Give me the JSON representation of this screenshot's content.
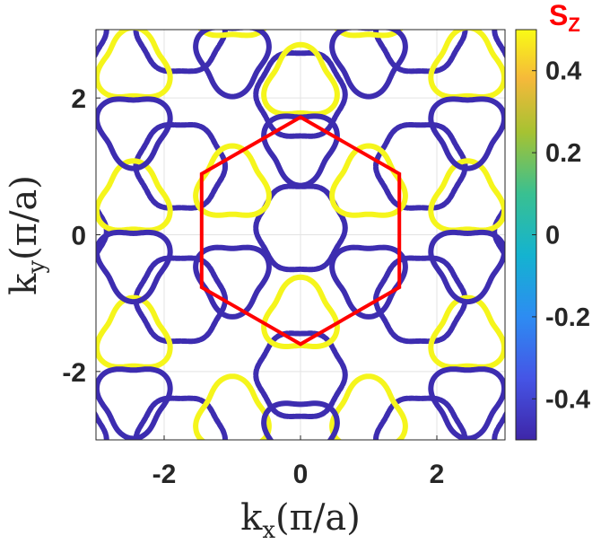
{
  "chart_data": {
    "type": "scatter",
    "title": "",
    "xlabel_main": "k",
    "xlabel_sub": "x",
    "xlabel_rest": "(π/a)",
    "ylabel_main": "k",
    "ylabel_sub": "y",
    "ylabel_rest": "(π/a)",
    "xlim": [
      -3,
      3
    ],
    "ylim": [
      -3,
      3
    ],
    "xticks": [
      -2,
      0,
      2
    ],
    "yticks": [
      -2,
      0,
      2
    ],
    "xtick_labels": [
      "-2",
      "0",
      "2"
    ],
    "ytick_labels": [
      "-2",
      "0",
      "2"
    ],
    "grid": true,
    "colorbar": {
      "title_main": "S",
      "title_sub": "Z",
      "range": [
        -0.5,
        0.5
      ],
      "ticks": [
        -0.4,
        -0.2,
        0,
        0.2,
        0.4
      ],
      "tick_labels": [
        "-0.4",
        "-0.2",
        "0",
        "0.2",
        "0.4"
      ],
      "colormap": "parula"
    },
    "hexagon": {
      "color": "#ff0000",
      "vertices": [
        [
          0,
          1.72
        ],
        [
          1.45,
          0.89
        ],
        [
          1.45,
          -0.77
        ],
        [
          0,
          -1.6
        ],
        [
          -1.45,
          -0.77
        ],
        [
          -1.45,
          0.89
        ]
      ]
    },
    "pockets": [
      {
        "name": "ring-center",
        "center": [
          0,
          0.1
        ],
        "radius": 0.63,
        "kind": "round",
        "color_value": -0.45
      },
      {
        "name": "ring-top",
        "center": [
          0,
          2.05
        ],
        "radius": 0.63,
        "kind": "round",
        "color_value": -0.45
      },
      {
        "name": "ring-bottom",
        "center": [
          0,
          -2.05
        ],
        "radius": 0.63,
        "kind": "round",
        "color_value": -0.45
      },
      {
        "name": "ring-left-up",
        "center": [
          -1.76,
          1.0
        ],
        "radius": 0.63,
        "kind": "round",
        "color_value": -0.45
      },
      {
        "name": "ring-left-down",
        "center": [
          -1.76,
          -0.95
        ],
        "radius": 0.63,
        "kind": "round",
        "color_value": -0.45
      },
      {
        "name": "ring-right-up",
        "center": [
          1.76,
          1.0
        ],
        "radius": 0.63,
        "kind": "round",
        "color_value": -0.45
      },
      {
        "name": "ring-right-down",
        "center": [
          1.76,
          -0.95
        ],
        "radius": 0.63,
        "kind": "round",
        "color_value": -0.45
      },
      {
        "name": "ring-far-left-top",
        "center": [
          -3.5,
          3.0
        ],
        "radius": 0.63,
        "kind": "round",
        "color_value": -0.45
      },
      {
        "name": "ring-far-right-top",
        "center": [
          3.5,
          3.0
        ],
        "radius": 0.63,
        "kind": "round",
        "color_value": -0.45
      },
      {
        "name": "ring-far-left-bottom",
        "center": [
          -3.5,
          -3.0
        ],
        "radius": 0.63,
        "kind": "round",
        "color_value": -0.45
      },
      {
        "name": "ring-far-right-bottom",
        "center": [
          3.5,
          -3.0
        ],
        "radius": 0.63,
        "kind": "round",
        "color_value": -0.45
      },
      {
        "name": "ring-top-left",
        "center": [
          -1.76,
          3.0
        ],
        "radius": 0.63,
        "kind": "round",
        "color_value": -0.45
      },
      {
        "name": "ring-top-right",
        "center": [
          1.76,
          3.0
        ],
        "radius": 0.63,
        "kind": "round",
        "color_value": -0.45
      },
      {
        "name": "ring-bottom-left",
        "center": [
          -1.76,
          -3.0
        ],
        "radius": 0.63,
        "kind": "round",
        "color_value": -0.45
      },
      {
        "name": "ring-bottom-right",
        "center": [
          1.76,
          -3.0
        ],
        "radius": 0.63,
        "kind": "round",
        "color_value": -0.45
      },
      {
        "name": "ring-far-left-mid",
        "center": [
          -3.5,
          0.05
        ],
        "radius": 0.63,
        "kind": "round",
        "color_value": -0.45
      },
      {
        "name": "ring-far-right-mid",
        "center": [
          3.5,
          0.05
        ],
        "radius": 0.63,
        "kind": "round",
        "color_value": -0.45
      },
      {
        "name": "tri-up-1",
        "center": [
          -1.0,
          0.72
        ],
        "radius": 0.5,
        "kind": "tri",
        "orientation": "up",
        "color_value": 0.5
      },
      {
        "name": "tri-up-2",
        "center": [
          1.0,
          0.72
        ],
        "radius": 0.5,
        "kind": "tri",
        "orientation": "up",
        "color_value": 0.5
      },
      {
        "name": "tri-up-3",
        "center": [
          0,
          -1.2
        ],
        "radius": 0.5,
        "kind": "tri",
        "orientation": "up",
        "color_value": 0.5
      },
      {
        "name": "tri-up-4",
        "center": [
          -2.45,
          2.45
        ],
        "radius": 0.5,
        "kind": "tri",
        "orientation": "up",
        "color_value": 0.5
      },
      {
        "name": "tri-up-5",
        "center": [
          2.45,
          2.45
        ],
        "radius": 0.5,
        "kind": "tri",
        "orientation": "up",
        "color_value": 0.5
      },
      {
        "name": "tri-up-6",
        "center": [
          -2.45,
          -1.5
        ],
        "radius": 0.5,
        "kind": "tri",
        "orientation": "up",
        "color_value": 0.5
      },
      {
        "name": "tri-up-7",
        "center": [
          2.45,
          -1.5
        ],
        "radius": 0.5,
        "kind": "tri",
        "orientation": "up",
        "color_value": 0.5
      },
      {
        "name": "tri-up-8",
        "center": [
          -1.0,
          3.35
        ],
        "radius": 0.5,
        "kind": "tri",
        "orientation": "up",
        "color_value": 0.5
      },
      {
        "name": "tri-up-9",
        "center": [
          1.0,
          3.35
        ],
        "radius": 0.5,
        "kind": "tri",
        "orientation": "up",
        "color_value": 0.5
      },
      {
        "name": "tri-up-10",
        "center": [
          0,
          2.2
        ],
        "radius": 0.5,
        "kind": "tri",
        "orientation": "up",
        "color_value": 0.5
      },
      {
        "name": "tri-up-11",
        "center": [
          -2.45,
          0.5
        ],
        "radius": 0.5,
        "kind": "tri",
        "orientation": "up",
        "color_value": 0.5
      },
      {
        "name": "tri-up-12",
        "center": [
          2.45,
          0.5
        ],
        "radius": 0.5,
        "kind": "tri",
        "orientation": "up",
        "color_value": 0.5
      },
      {
        "name": "tri-up-13",
        "center": [
          -1.0,
          -2.65
        ],
        "radius": 0.5,
        "kind": "tri",
        "orientation": "up",
        "color_value": 0.5
      },
      {
        "name": "tri-up-14",
        "center": [
          1.0,
          -2.65
        ],
        "radius": 0.5,
        "kind": "tri",
        "orientation": "up",
        "color_value": 0.5
      },
      {
        "name": "tri-down-1",
        "center": [
          -1.0,
          -0.62
        ],
        "radius": 0.5,
        "kind": "tri",
        "orientation": "down",
        "color_value": -0.5
      },
      {
        "name": "tri-down-2",
        "center": [
          1.0,
          -0.62
        ],
        "radius": 0.5,
        "kind": "tri",
        "orientation": "down",
        "color_value": -0.5
      },
      {
        "name": "tri-down-3",
        "center": [
          0,
          1.3
        ],
        "radius": 0.5,
        "kind": "tri",
        "orientation": "down",
        "color_value": -0.5
      },
      {
        "name": "tri-down-4",
        "center": [
          -2.45,
          1.55
        ],
        "radius": 0.5,
        "kind": "tri",
        "orientation": "down",
        "color_value": -0.5
      },
      {
        "name": "tri-down-5",
        "center": [
          2.45,
          1.55
        ],
        "radius": 0.5,
        "kind": "tri",
        "orientation": "down",
        "color_value": -0.5
      },
      {
        "name": "tri-down-6",
        "center": [
          -2.45,
          -2.4
        ],
        "radius": 0.5,
        "kind": "tri",
        "orientation": "down",
        "color_value": -0.5
      },
      {
        "name": "tri-down-7",
        "center": [
          2.45,
          -2.4
        ],
        "radius": 0.5,
        "kind": "tri",
        "orientation": "down",
        "color_value": -0.5
      },
      {
        "name": "tri-down-8",
        "center": [
          -2.45,
          -0.4
        ],
        "radius": 0.5,
        "kind": "tri",
        "orientation": "down",
        "color_value": -0.5
      },
      {
        "name": "tri-down-9",
        "center": [
          2.45,
          -0.4
        ],
        "radius": 0.5,
        "kind": "tri",
        "orientation": "down",
        "color_value": -0.5
      },
      {
        "name": "tri-down-10",
        "center": [
          -1.0,
          2.6
        ],
        "radius": 0.5,
        "kind": "tri",
        "orientation": "down",
        "color_value": -0.5
      },
      {
        "name": "tri-down-11",
        "center": [
          1.0,
          2.6
        ],
        "radius": 0.5,
        "kind": "tri",
        "orientation": "down",
        "color_value": -0.5
      },
      {
        "name": "tri-down-12",
        "center": [
          0,
          -2.9
        ],
        "radius": 0.5,
        "kind": "tri",
        "orientation": "down",
        "color_value": -0.5
      },
      {
        "name": "tri-down-13",
        "center": [
          -1.0,
          -3.5
        ],
        "radius": 0.5,
        "kind": "tri",
        "orientation": "down",
        "color_value": -0.5
      },
      {
        "name": "tri-down-14",
        "center": [
          1.0,
          -3.5
        ],
        "radius": 0.5,
        "kind": "tri",
        "orientation": "down",
        "color_value": -0.5
      }
    ]
  }
}
